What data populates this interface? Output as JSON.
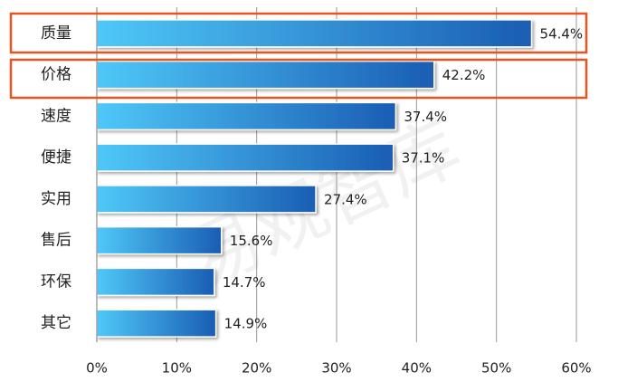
{
  "chart_data": {
    "type": "bar",
    "orientation": "horizontal",
    "categories": [
      "质量",
      "价格",
      "速度",
      "便捷",
      "实用",
      "售后",
      "环保",
      "其它"
    ],
    "values": [
      54.4,
      42.2,
      37.4,
      37.1,
      27.4,
      15.6,
      14.7,
      14.9
    ],
    "value_labels": [
      "54.4%",
      "42.2%",
      "37.4%",
      "37.1%",
      "27.4%",
      "15.6%",
      "14.7%",
      "14.9%"
    ],
    "color": [
      "#4fc8f8",
      "#1a5db3"
    ],
    "xlim": [
      0,
      60
    ],
    "xticks": [
      {
        "value": 0,
        "label": "0%"
      },
      {
        "value": 10,
        "label": "10%"
      },
      {
        "value": 20,
        "label": "20%"
      },
      {
        "value": 30,
        "label": "30%"
      },
      {
        "value": 40,
        "label": "40%"
      },
      {
        "value": 50,
        "label": "50%"
      },
      {
        "value": 60,
        "label": "60%"
      }
    ],
    "grid": true,
    "watermark": "易观智库"
  }
}
